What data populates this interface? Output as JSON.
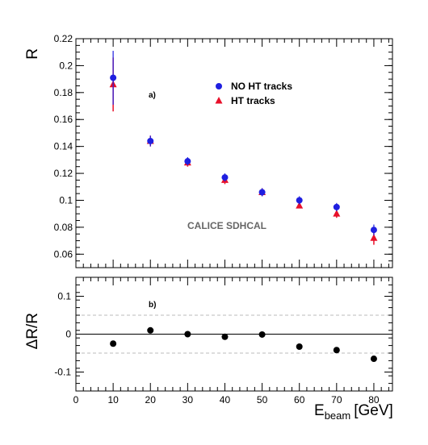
{
  "chart_data": [
    {
      "type": "scatter",
      "panel_tag": "a)",
      "ylabel": "R",
      "annotation": "CALICE SDHCAL",
      "x": [
        10,
        20,
        30,
        40,
        50,
        60,
        70,
        80
      ],
      "xlim": [
        0,
        85
      ],
      "ylim": [
        0.05,
        0.22
      ],
      "yticks": [
        0.06,
        0.08,
        0.1,
        0.12,
        0.14,
        0.16,
        0.18,
        0.2,
        0.22
      ],
      "ytick_labels": [
        "0.06",
        "0.08",
        "0.1",
        "0.12",
        "0.14",
        "0.16",
        "0.18",
        "0.2",
        "0.22"
      ],
      "legend_position": "top-right",
      "series": [
        {
          "name": "NO HT tracks",
          "marker": "circle",
          "color": "#1f1fe0",
          "values": [
            0.191,
            0.144,
            0.129,
            0.117,
            0.106,
            0.1,
            0.095,
            0.078
          ],
          "errors": [
            0.02,
            0.004,
            0.003,
            0.003,
            0.003,
            0.003,
            0.003,
            0.004
          ]
        },
        {
          "name": "HT tracks",
          "marker": "triangle",
          "color": "#e8102a",
          "values": [
            0.186,
            0.144,
            0.128,
            0.115,
            0.106,
            0.096,
            0.09,
            0.072
          ],
          "errors": [
            0.02,
            0.004,
            0.003,
            0.003,
            0.003,
            0.002,
            0.003,
            0.005
          ]
        }
      ]
    },
    {
      "type": "scatter",
      "panel_tag": "b)",
      "ylabel": "ΔR/R",
      "xlabel_main": "E",
      "xlabel_sub": "beam",
      "xlabel_unit": "[GeV]",
      "x": [
        10,
        20,
        30,
        40,
        50,
        60,
        70,
        80
      ],
      "values": [
        -0.025,
        0.01,
        0.0,
        -0.007,
        -0.001,
        -0.033,
        -0.042,
        -0.065
      ],
      "xlim": [
        0,
        85
      ],
      "ylim": [
        -0.15,
        0.15
      ],
      "yticks": [
        -0.1,
        0,
        0.1
      ],
      "ytick_labels": [
        "-0.1",
        "0",
        "0.1"
      ],
      "xticks": [
        0,
        10,
        20,
        30,
        40,
        50,
        60,
        70,
        80
      ],
      "xtick_labels": [
        "0",
        "10",
        "20",
        "30",
        "40",
        "50",
        "60",
        "70",
        "80"
      ],
      "reference_lines": [
        0.05,
        0,
        -0.05
      ],
      "color": "#000000"
    }
  ]
}
